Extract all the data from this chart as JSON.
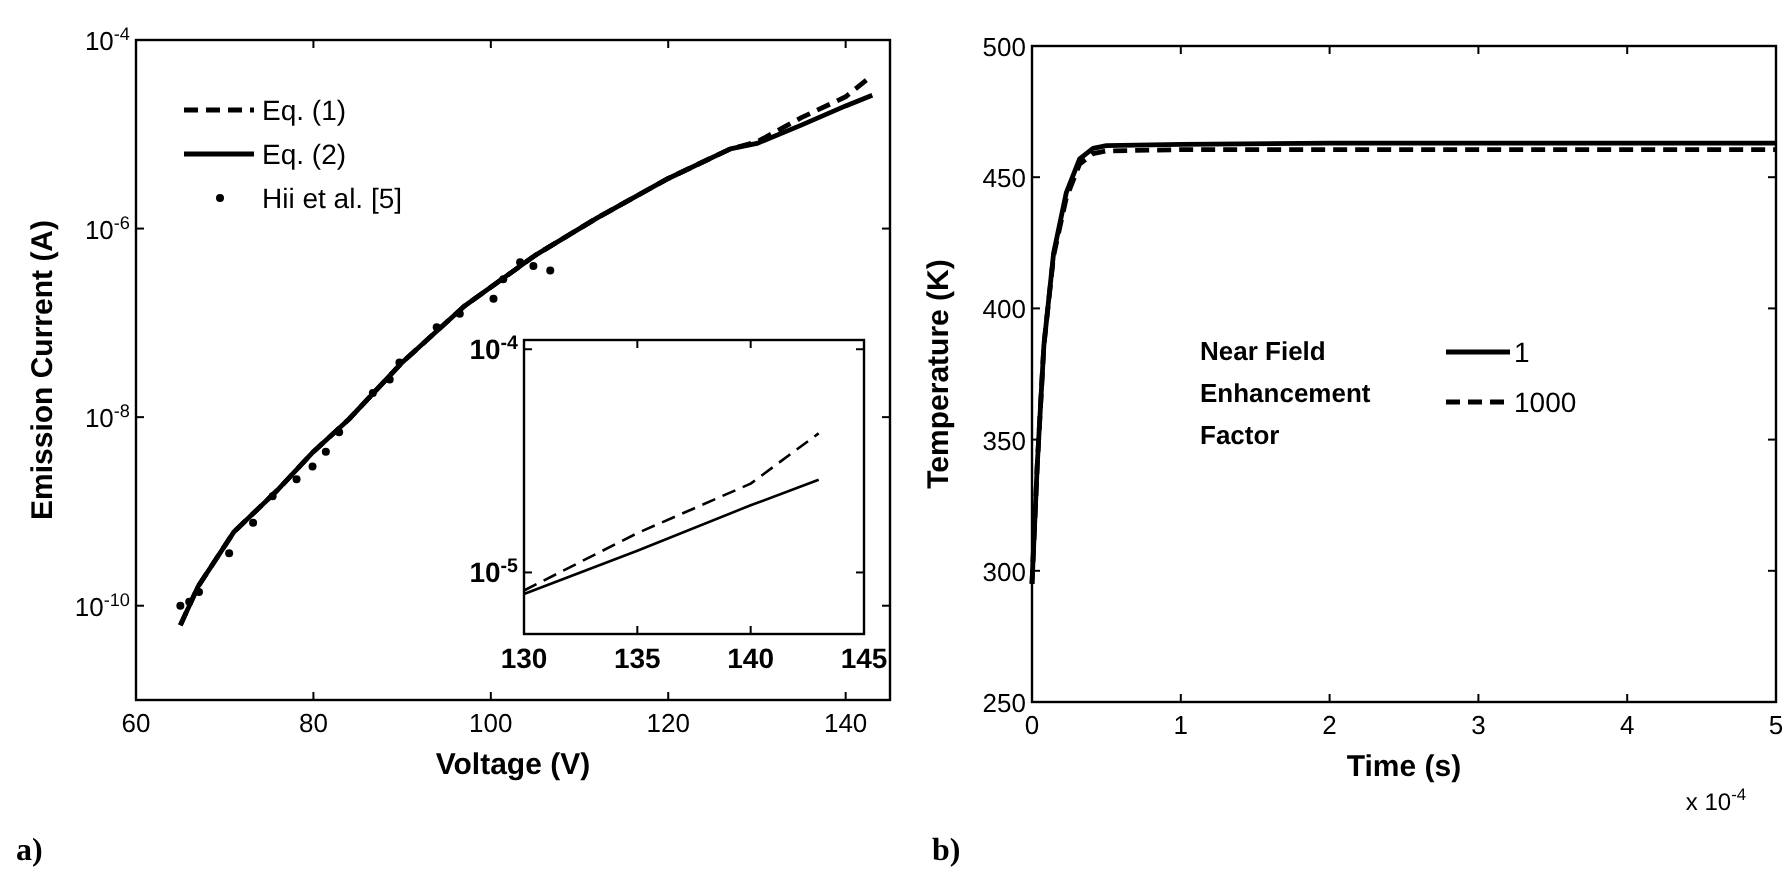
{
  "chart_data": [
    {
      "type": "line",
      "xlabel": "Voltage (V)",
      "ylabel": "Emission Current (A)",
      "log": "y",
      "xlim": [
        60,
        145
      ],
      "xticks": [
        60,
        80,
        100,
        120,
        140
      ],
      "ylim": [
        1e-11,
        0.0001
      ],
      "yticks": [
        {
          "value": 1e-10,
          "label": "10$^{-10}$"
        },
        {
          "value": 1e-08,
          "label": "10$^{-8}$"
        },
        {
          "value": 1e-06,
          "label": "10$^{-6}$"
        },
        {
          "value": 0.0001,
          "label": "10$^{-4}$"
        }
      ],
      "legend": "top left",
      "grid": false,
      "annotations": [
        "a)"
      ],
      "series": [
        {
          "name": "Eq. (1)",
          "color": "#000000",
          "line_style": "dashed",
          "x": [
            65,
            67,
            71,
            76,
            80,
            84,
            90,
            97,
            105,
            112,
            120,
            127,
            130,
            135,
            140,
            143
          ],
          "values": [
            6.2e-11,
            1.6e-10,
            6e-10,
            1.7e-09,
            4.3e-09,
            9.5e-09,
            3.8e-08,
            1.5e-07,
            5.2e-07,
            1.3e-06,
            3.4e-06,
            7e-06,
            8.3e-06,
            1.5e-05,
            2.5e-05,
            4.2e-05
          ]
        },
        {
          "name": "Eq. (2)",
          "color": "#000000",
          "line_style": "solid",
          "x": [
            65,
            67,
            71,
            76,
            80,
            84,
            90,
            97,
            105,
            112,
            120,
            127,
            130,
            135,
            140,
            143
          ],
          "values": [
            6.2e-11,
            1.6e-10,
            6e-10,
            1.7e-09,
            4.3e-09,
            9.5e-09,
            3.8e-08,
            1.5e-07,
            5.2e-07,
            1.3e-06,
            3.4e-06,
            7e-06,
            8e-06,
            1.25e-05,
            2e-05,
            2.6e-05
          ]
        },
        {
          "name": "Hii et al. [5]",
          "type": "scatter",
          "marker": "circle",
          "color": "#000000",
          "x": [
            65,
            66,
            67.1,
            70.5,
            73.2,
            75.4,
            78.1,
            79.9,
            81.4,
            82.9,
            86.7,
            88.6,
            89.7,
            93.9,
            96.5,
            100.3,
            101.4,
            103.3,
            104.8,
            106.7
          ],
          "values": [
            1e-10,
            1.1e-10,
            1.4e-10,
            3.6e-10,
            7.6e-10,
            1.45e-09,
            2.2e-09,
            3e-09,
            4.3e-09,
            6.9e-09,
            1.8e-08,
            2.5e-08,
            3.8e-08,
            9e-08,
            1.25e-07,
            1.8e-07,
            2.9e-07,
            4.4e-07,
            4e-07,
            3.6e-07
          ]
        }
      ]
    },
    {
      "type": "line",
      "log": "y",
      "xlim": [
        130,
        145
      ],
      "xticks": [
        130,
        135,
        140,
        145
      ],
      "ylim": [
        5.3e-06,
        0.00011
      ],
      "yticks": [
        {
          "value": 1e-05,
          "label": "10$^{-5}$"
        },
        {
          "value": 0.0001,
          "label": "10$^{-4}$"
        }
      ],
      "grid": false,
      "series": [
        {
          "color": "#000000",
          "line_style": "dashed",
          "x": [
            130,
            135,
            140,
            143
          ],
          "values": [
            8.3e-06,
            1.5e-05,
            2.5e-05,
            4.2e-05
          ]
        },
        {
          "color": "#000000",
          "line_style": "solid",
          "x": [
            130,
            135,
            140,
            143
          ],
          "values": [
            8e-06,
            1.25e-05,
            2e-05,
            2.6e-05
          ]
        }
      ]
    },
    {
      "type": "line",
      "xlabel": "Time (s)",
      "ylabel": "Temperature (K)",
      "xlim": [
        0,
        5
      ],
      "xticks": [
        0,
        1,
        2,
        3,
        4,
        5
      ],
      "ylim": [
        250,
        500
      ],
      "yticks": [
        250,
        300,
        350,
        400,
        450,
        500
      ],
      "legend": "center",
      "legend_title": "Near Field Enhancement Factor",
      "grid": false,
      "annotations": [
        "x 10$^{-4}$",
        "b)"
      ],
      "series": [
        {
          "name": "1",
          "color": "#000000",
          "line_style": "solid",
          "x": [
            0,
            0.035,
            0.08,
            0.145,
            0.23,
            0.32,
            0.41,
            0.5,
            1,
            2,
            3,
            4,
            5
          ],
          "values": [
            295,
            340,
            386,
            421,
            444,
            457,
            461,
            462,
            462.5,
            463,
            463,
            463,
            463
          ]
        },
        {
          "name": "1000",
          "color": "#000000",
          "line_style": "dashed",
          "x": [
            0,
            0.035,
            0.08,
            0.145,
            0.23,
            0.32,
            0.41,
            0.5,
            1,
            2,
            3,
            4,
            5
          ],
          "values": [
            295,
            340,
            386,
            420,
            442,
            455,
            459,
            460,
            460.5,
            460.5,
            460.5,
            460.5,
            460.5
          ]
        }
      ]
    }
  ]
}
